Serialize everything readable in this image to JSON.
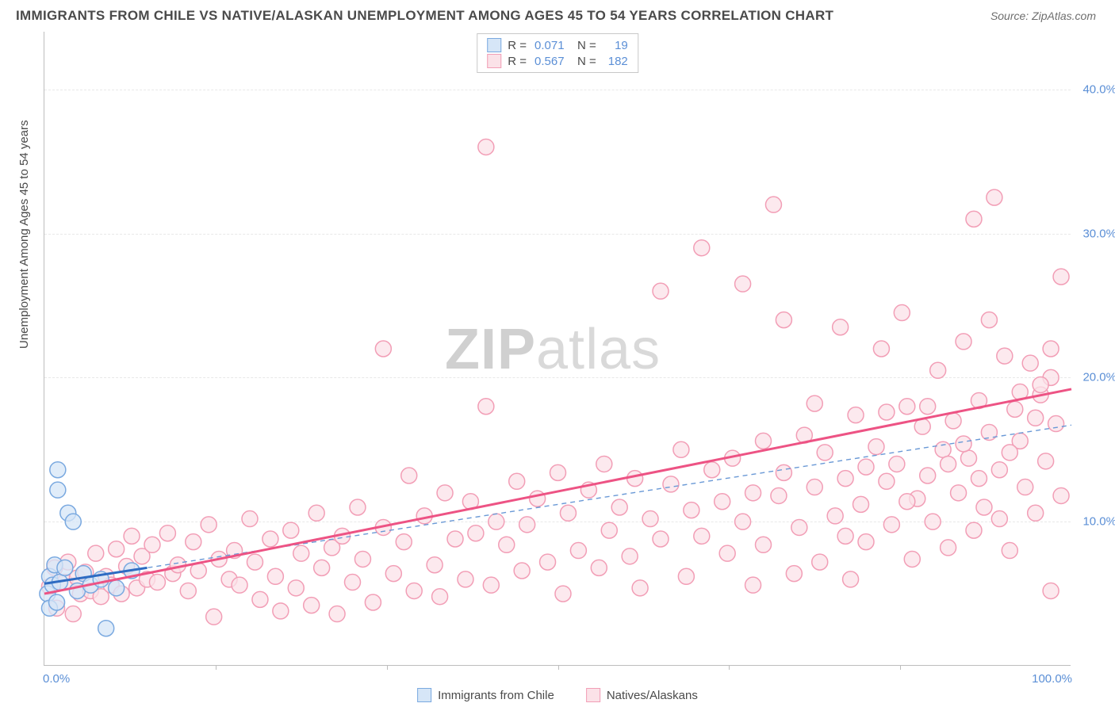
{
  "title": "IMMIGRANTS FROM CHILE VS NATIVE/ALASKAN UNEMPLOYMENT AMONG AGES 45 TO 54 YEARS CORRELATION CHART",
  "source": "Source: ZipAtlas.com",
  "ylabel": "Unemployment Among Ages 45 to 54 years",
  "watermark_zip": "ZIP",
  "watermark_atlas": "atlas",
  "chart": {
    "type": "scatter",
    "xlim": [
      0,
      100
    ],
    "ylim": [
      0,
      44
    ],
    "xtick_labels": {
      "0": "0.0%",
      "100": "100.0%"
    },
    "xtick_marks": [
      16.67,
      33.33,
      50,
      66.67,
      83.33
    ],
    "ytick_labels": {
      "10": "10.0%",
      "20": "20.0%",
      "30": "30.0%",
      "40": "40.0%"
    },
    "grid_color": "#e8e8e8",
    "border_color": "#bdbdbd",
    "background_color": "#ffffff",
    "marker_radius": 10,
    "marker_stroke_width": 1.5,
    "series": [
      {
        "id": "natives",
        "label": "Natives/Alaskans",
        "fill": "#fbe2e8",
        "stroke": "#f29eb6",
        "r_value": "0.567",
        "n_value": "182",
        "trend": {
          "x1": 0,
          "y1": 5.0,
          "x2": 100,
          "y2": 19.2,
          "stroke": "#ed5384",
          "width": 3,
          "dash": "none"
        },
        "points": [
          [
            0.5,
            5.5
          ],
          [
            1,
            6.8
          ],
          [
            1.2,
            4.0
          ],
          [
            2,
            5.8
          ],
          [
            2.3,
            7.2
          ],
          [
            2.8,
            3.6
          ],
          [
            3.2,
            6.1
          ],
          [
            3.5,
            5.0
          ],
          [
            4,
            6.5
          ],
          [
            4.5,
            5.2
          ],
          [
            5,
            7.8
          ],
          [
            5.5,
            4.8
          ],
          [
            6,
            6.2
          ],
          [
            6.5,
            5.6
          ],
          [
            7,
            8.1
          ],
          [
            7.5,
            5.0
          ],
          [
            8,
            6.9
          ],
          [
            8.5,
            9.0
          ],
          [
            9,
            5.4
          ],
          [
            9.5,
            7.6
          ],
          [
            10,
            6.0
          ],
          [
            10.5,
            8.4
          ],
          [
            11,
            5.8
          ],
          [
            12,
            9.2
          ],
          [
            12.5,
            6.4
          ],
          [
            13,
            7.0
          ],
          [
            14,
            5.2
          ],
          [
            14.5,
            8.6
          ],
          [
            15,
            6.6
          ],
          [
            16,
            9.8
          ],
          [
            16.5,
            3.4
          ],
          [
            17,
            7.4
          ],
          [
            18,
            6.0
          ],
          [
            18.5,
            8.0
          ],
          [
            19,
            5.6
          ],
          [
            20,
            10.2
          ],
          [
            20.5,
            7.2
          ],
          [
            21,
            4.6
          ],
          [
            22,
            8.8
          ],
          [
            22.5,
            6.2
          ],
          [
            23,
            3.8
          ],
          [
            24,
            9.4
          ],
          [
            24.5,
            5.4
          ],
          [
            25,
            7.8
          ],
          [
            26,
            4.2
          ],
          [
            26.5,
            10.6
          ],
          [
            27,
            6.8
          ],
          [
            28,
            8.2
          ],
          [
            28.5,
            3.6
          ],
          [
            29,
            9.0
          ],
          [
            30,
            5.8
          ],
          [
            30.5,
            11.0
          ],
          [
            31,
            7.4
          ],
          [
            32,
            4.4
          ],
          [
            33,
            22.0
          ],
          [
            33,
            9.6
          ],
          [
            34,
            6.4
          ],
          [
            35,
            8.6
          ],
          [
            35.5,
            13.2
          ],
          [
            36,
            5.2
          ],
          [
            37,
            10.4
          ],
          [
            38,
            7.0
          ],
          [
            38.5,
            4.8
          ],
          [
            39,
            12.0
          ],
          [
            40,
            8.8
          ],
          [
            41,
            6.0
          ],
          [
            41.5,
            11.4
          ],
          [
            42,
            9.2
          ],
          [
            43,
            36.0
          ],
          [
            43,
            18.0
          ],
          [
            43.5,
            5.6
          ],
          [
            44,
            10.0
          ],
          [
            45,
            8.4
          ],
          [
            46,
            12.8
          ],
          [
            46.5,
            6.6
          ],
          [
            47,
            9.8
          ],
          [
            48,
            11.6
          ],
          [
            49,
            7.2
          ],
          [
            50,
            13.4
          ],
          [
            50.5,
            5.0
          ],
          [
            51,
            10.6
          ],
          [
            52,
            8.0
          ],
          [
            53,
            12.2
          ],
          [
            54,
            6.8
          ],
          [
            54.5,
            14.0
          ],
          [
            55,
            9.4
          ],
          [
            56,
            11.0
          ],
          [
            57,
            7.6
          ],
          [
            57.5,
            13.0
          ],
          [
            58,
            5.4
          ],
          [
            59,
            10.2
          ],
          [
            60,
            26.0
          ],
          [
            60,
            8.8
          ],
          [
            61,
            12.6
          ],
          [
            62,
            15.0
          ],
          [
            62.5,
            6.2
          ],
          [
            63,
            10.8
          ],
          [
            64,
            29.0
          ],
          [
            64,
            9.0
          ],
          [
            65,
            13.6
          ],
          [
            66,
            11.4
          ],
          [
            66.5,
            7.8
          ],
          [
            67,
            14.4
          ],
          [
            68,
            26.5
          ],
          [
            68,
            10.0
          ],
          [
            69,
            12.0
          ],
          [
            69,
            5.6
          ],
          [
            70,
            15.6
          ],
          [
            70,
            8.4
          ],
          [
            71,
            32.0
          ],
          [
            71.5,
            11.8
          ],
          [
            72,
            24.0
          ],
          [
            72,
            13.4
          ],
          [
            73,
            6.4
          ],
          [
            73.5,
            9.6
          ],
          [
            74,
            16.0
          ],
          [
            75,
            12.4
          ],
          [
            75.5,
            7.2
          ],
          [
            76,
            14.8
          ],
          [
            77,
            10.4
          ],
          [
            77.5,
            23.5
          ],
          [
            78,
            13.0
          ],
          [
            78.5,
            6.0
          ],
          [
            79,
            17.4
          ],
          [
            79.5,
            11.2
          ],
          [
            80,
            8.6
          ],
          [
            81,
            15.2
          ],
          [
            81.5,
            22.0
          ],
          [
            82,
            12.8
          ],
          [
            82.5,
            9.8
          ],
          [
            83,
            14.0
          ],
          [
            83.5,
            24.5
          ],
          [
            84,
            18.0
          ],
          [
            84.5,
            7.4
          ],
          [
            85,
            11.6
          ],
          [
            85.5,
            16.6
          ],
          [
            86,
            13.2
          ],
          [
            86.5,
            10.0
          ],
          [
            87,
            20.5
          ],
          [
            87.5,
            15.0
          ],
          [
            88,
            8.2
          ],
          [
            88.5,
            17.0
          ],
          [
            89,
            12.0
          ],
          [
            89.5,
            22.5
          ],
          [
            90,
            14.4
          ],
          [
            90.5,
            31.0
          ],
          [
            90.5,
            9.4
          ],
          [
            91,
            18.4
          ],
          [
            91.5,
            11.0
          ],
          [
            92,
            24.0
          ],
          [
            92,
            16.2
          ],
          [
            92.5,
            32.5
          ],
          [
            93,
            13.6
          ],
          [
            93.5,
            21.5
          ],
          [
            94,
            8.0
          ],
          [
            94.5,
            17.8
          ],
          [
            95,
            15.6
          ],
          [
            95.5,
            12.4
          ],
          [
            96,
            21.0
          ],
          [
            96.5,
            10.6
          ],
          [
            97,
            18.8
          ],
          [
            97.5,
            14.2
          ],
          [
            98,
            22.0
          ],
          [
            98,
            5.2
          ],
          [
            98.5,
            16.8
          ],
          [
            99,
            11.8
          ],
          [
            99,
            27.0
          ],
          [
            98,
            20.0
          ],
          [
            97,
            19.5
          ],
          [
            96.5,
            17.2
          ],
          [
            95,
            19.0
          ],
          [
            94,
            14.8
          ],
          [
            93,
            10.2
          ],
          [
            91,
            13.0
          ],
          [
            89.5,
            15.4
          ],
          [
            88,
            14.0
          ],
          [
            86,
            18.0
          ],
          [
            84,
            11.4
          ],
          [
            82,
            17.6
          ],
          [
            80,
            13.8
          ],
          [
            78,
            9.0
          ],
          [
            75,
            18.2
          ]
        ]
      },
      {
        "id": "immigrants",
        "label": "Immigrants from Chile",
        "fill": "#d6e6f7",
        "stroke": "#7aa9e0",
        "r_value": "0.071",
        "n_value": "19",
        "trend": {
          "x1": 0,
          "y1": 5.7,
          "x2": 10,
          "y2": 6.8,
          "stroke": "#2e6bc2",
          "width": 3,
          "dash": "none"
        },
        "trend_ext": {
          "x1": 0,
          "y1": 5.7,
          "x2": 100,
          "y2": 16.7,
          "stroke": "#6a99d6",
          "width": 1.4,
          "dash": "6,5"
        },
        "points": [
          [
            0.3,
            5.0
          ],
          [
            0.5,
            6.2
          ],
          [
            0.5,
            4.0
          ],
          [
            0.8,
            5.6
          ],
          [
            1.0,
            7.0
          ],
          [
            1.2,
            4.4
          ],
          [
            1.3,
            13.6
          ],
          [
            1.3,
            12.2
          ],
          [
            1.5,
            5.8
          ],
          [
            2.0,
            6.8
          ],
          [
            2.3,
            10.6
          ],
          [
            2.8,
            10.0
          ],
          [
            3.2,
            5.2
          ],
          [
            3.8,
            6.4
          ],
          [
            4.5,
            5.6
          ],
          [
            5.5,
            6.0
          ],
          [
            6.0,
            2.6
          ],
          [
            7.0,
            5.4
          ],
          [
            8.5,
            6.6
          ]
        ]
      }
    ]
  },
  "legend": {
    "r_label": "R =",
    "n_label": "N ="
  }
}
